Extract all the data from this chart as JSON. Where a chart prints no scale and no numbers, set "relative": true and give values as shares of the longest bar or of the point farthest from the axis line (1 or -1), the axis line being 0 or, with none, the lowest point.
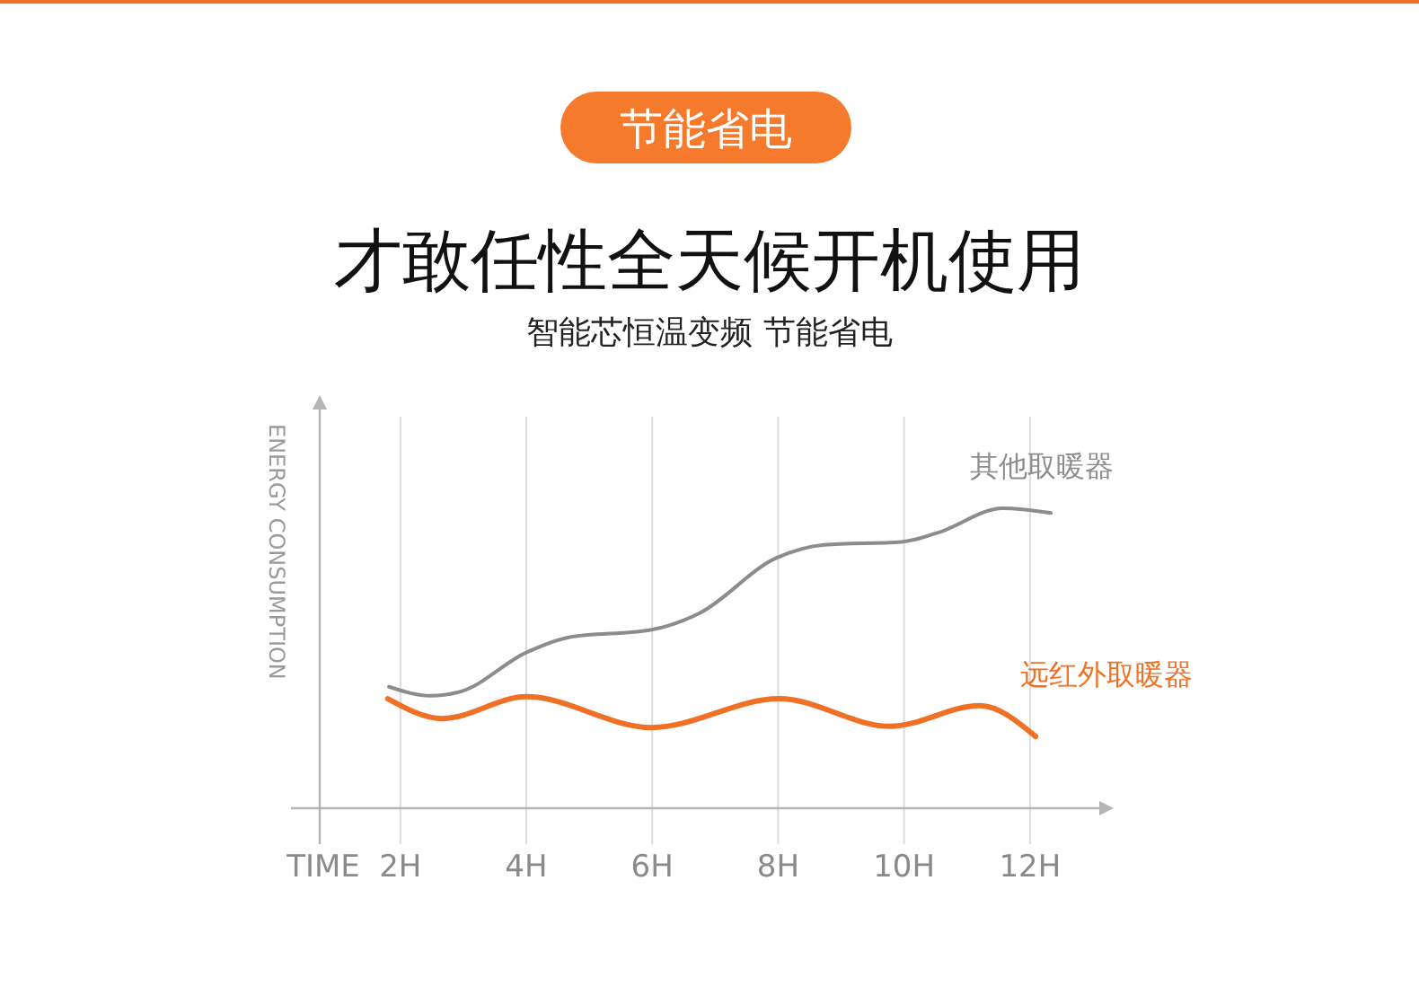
{
  "chart_data": {
    "type": "line",
    "title": "才敢任性全天候开机使用",
    "subtitle": "智能芯恒温变频 节能省电",
    "annotations": [
      "节能省电"
    ],
    "xlabel": "TIME",
    "ylabel": "ENERGY CONSUMPTION",
    "relative": true,
    "xlim": [
      0.72,
      13.1
    ],
    "xticks": [
      {
        "value": 2,
        "label": "2H"
      },
      {
        "value": 4,
        "label": "4H"
      },
      {
        "value": 6,
        "label": "6H"
      },
      {
        "value": 8,
        "label": "8H"
      },
      {
        "value": 10,
        "label": "10H"
      },
      {
        "value": 12,
        "label": "12H"
      }
    ],
    "grid": "x",
    "legend": false,
    "marker": "none",
    "line_style": "solid",
    "series": [
      {
        "name": "其他取暖器",
        "color": "#8c8c8c",
        "x": [
          1.82,
          2.48,
          2.96,
          4.0,
          4.66,
          5.99,
          6.74,
          7.97,
          8.73,
          9.96,
          10.53,
          11.57,
          12.33
        ],
        "values": [
          0.405,
          0.375,
          0.389,
          0.519,
          0.569,
          0.595,
          0.649,
          0.834,
          0.878,
          0.888,
          0.918,
          1.0,
          0.984
        ]
      },
      {
        "name": "远红外取暖器",
        "color": "#f07025",
        "x": [
          1.8,
          2.67,
          4.0,
          5.99,
          8.02,
          9.78,
          11.2,
          12.09
        ],
        "values": [
          0.365,
          0.299,
          0.372,
          0.269,
          0.365,
          0.273,
          0.342,
          0.239
        ]
      }
    ]
  }
}
